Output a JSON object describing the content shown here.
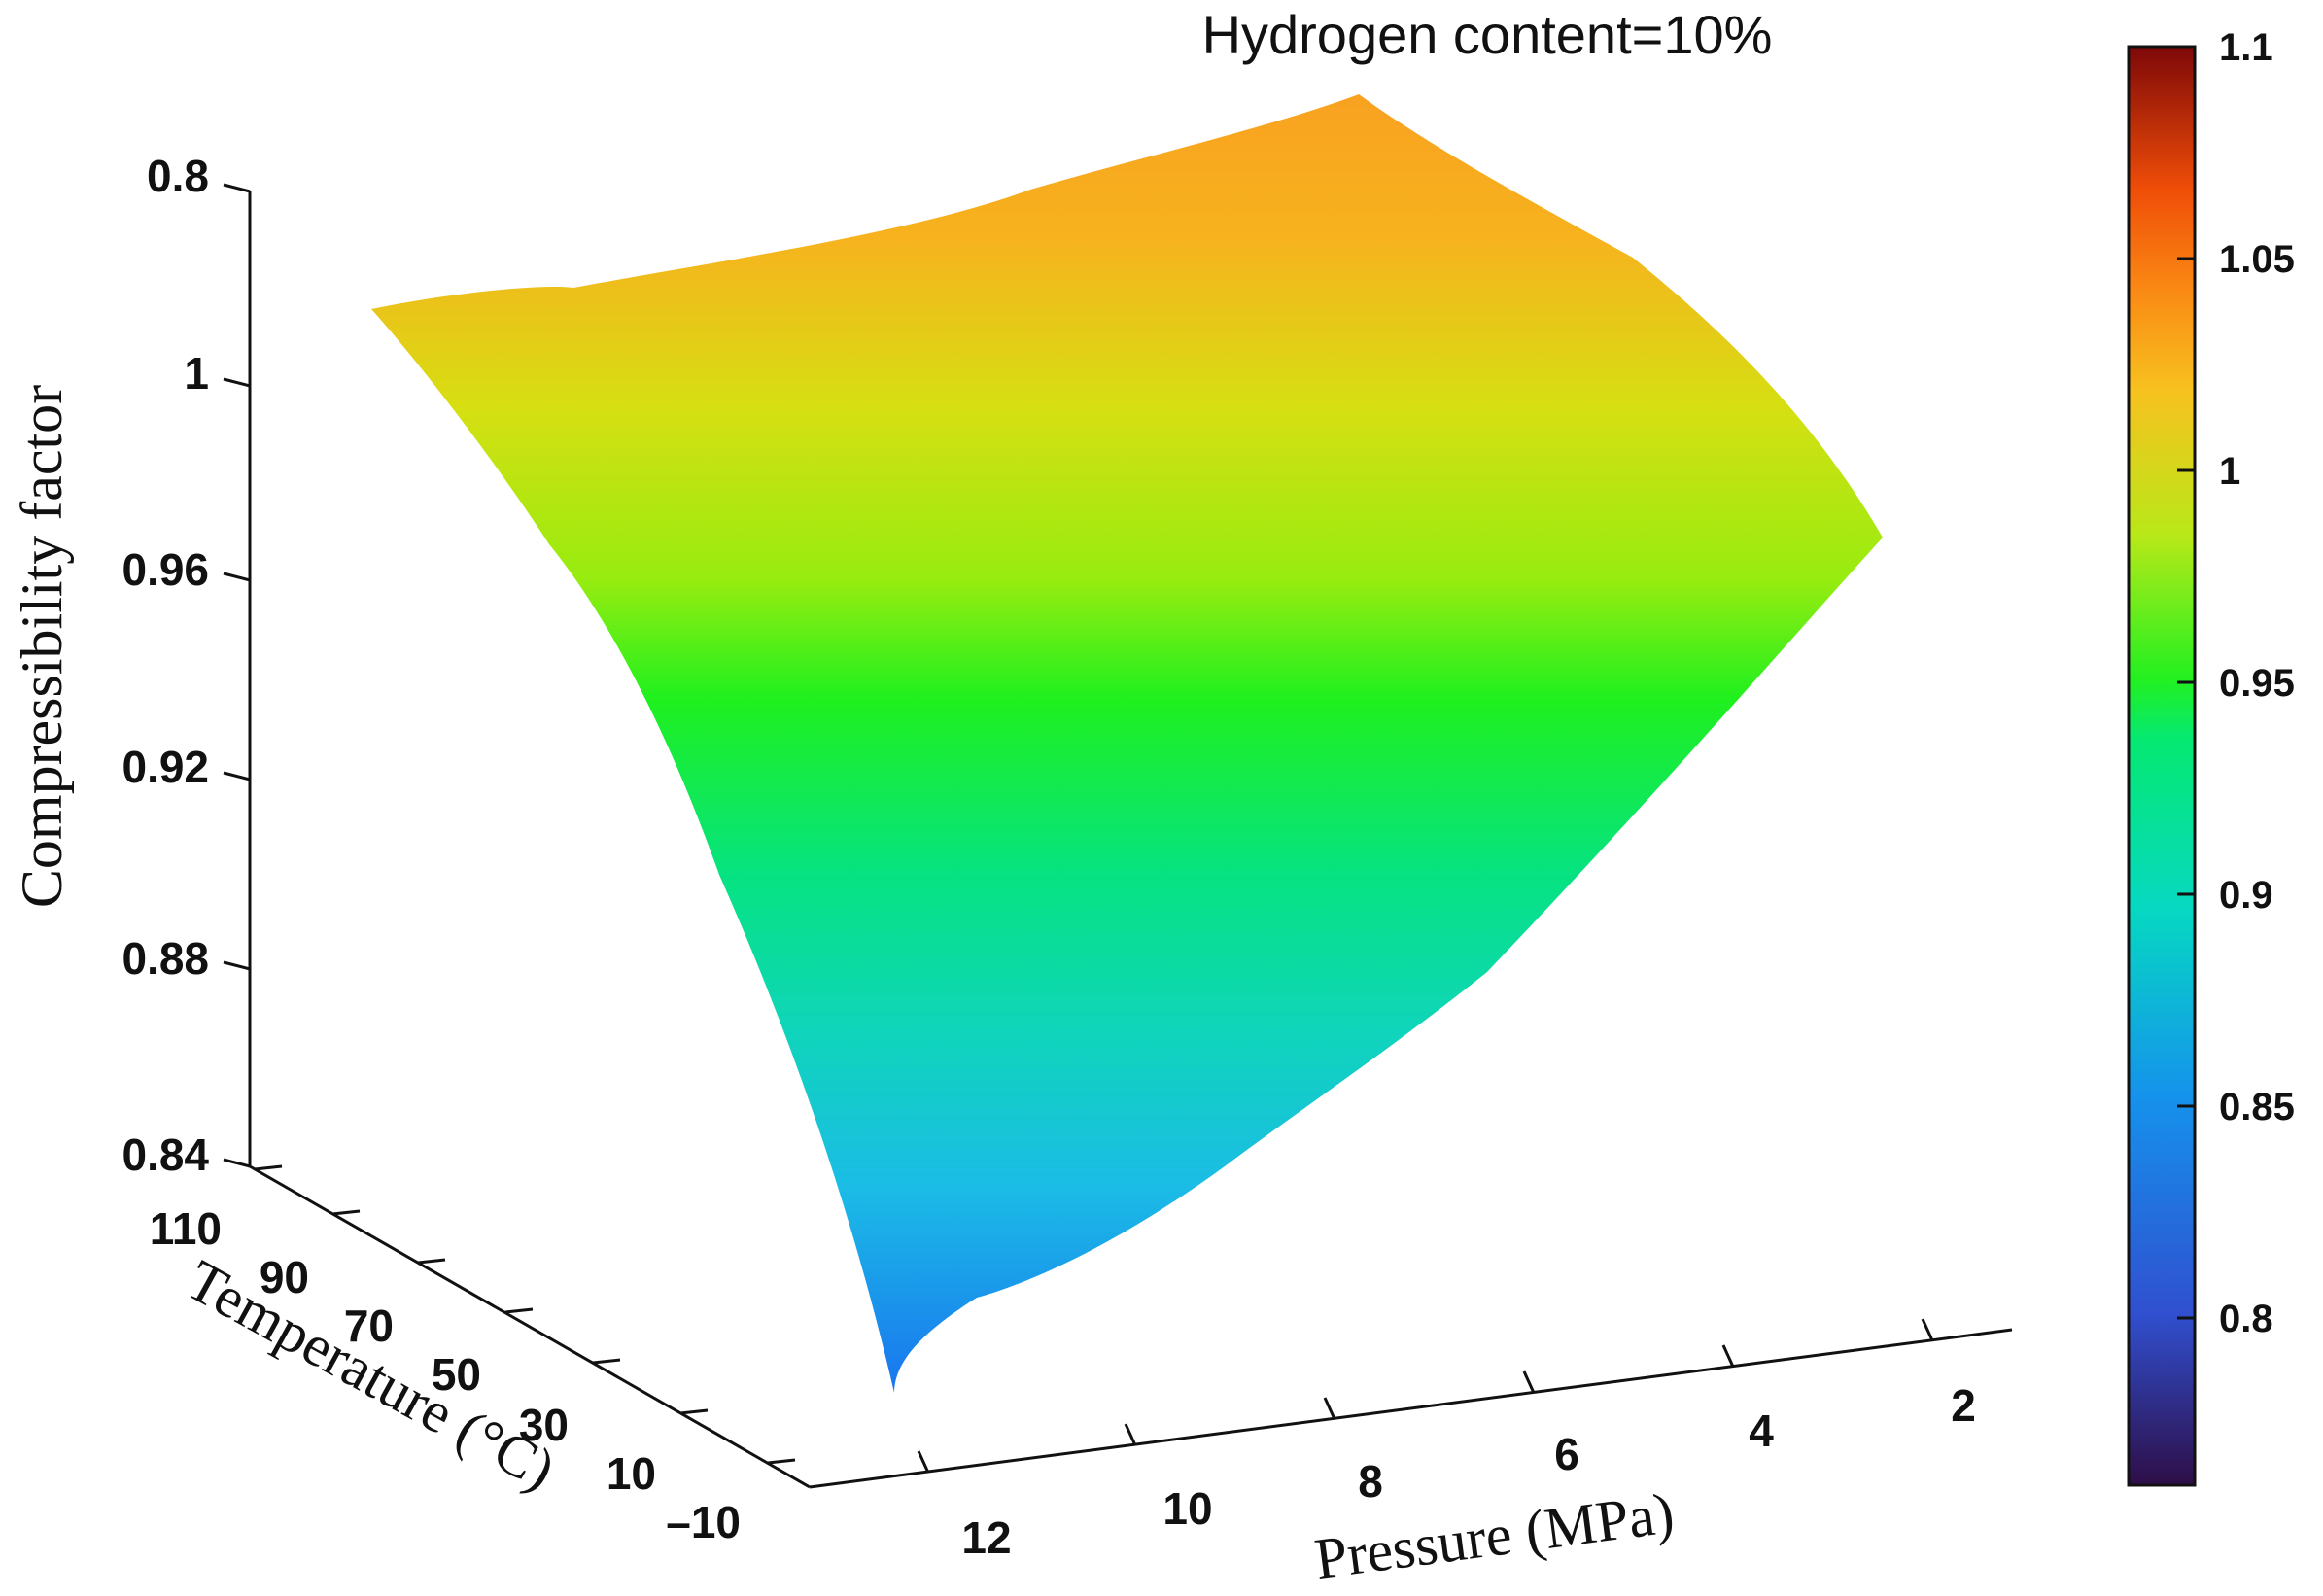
{
  "chart_data": {
    "type": "surface",
    "title": "Hydrogen content=10%",
    "xlabel": "Pressure (MPa)",
    "ylabel": "Temperature (°C)",
    "zlabel": "Compressibility factor",
    "x_ticks": [
      "12",
      "10",
      "8",
      "6",
      "4",
      "2"
    ],
    "y_ticks": [
      "110",
      "90",
      "70",
      "50",
      "30",
      "10",
      "–10"
    ],
    "z_ticks": [
      "0.8",
      "1",
      "0.96",
      "0.92",
      "0.88",
      "0.84"
    ],
    "colorbar_ticks": [
      "1.1",
      "1.05",
      "1",
      "0.95",
      "0.9",
      "0.85",
      "0.8"
    ],
    "colormap": "jet",
    "clim": [
      0.76,
      1.1
    ],
    "colors": {
      "surface_top": "#f8a623",
      "surface_mid": "#1ff01e",
      "surface_bottom": "#1b88ee"
    },
    "series": [
      {
        "x": [
          12,
          2,
          12,
          2
        ],
        "y": [
          -10,
          -10,
          110,
          110
        ],
        "z": [
          0.84,
          0.91,
          0.97,
          1.0
        ]
      }
    ]
  }
}
